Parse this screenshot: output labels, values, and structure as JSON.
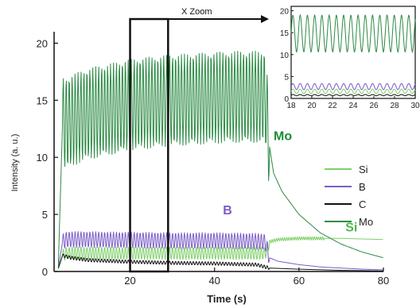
{
  "chart_data": [
    {
      "type": "line",
      "title": "",
      "xlabel": "Time (s)",
      "ylabel": "Intensity (a. u.)",
      "xlim": [
        2,
        80
      ],
      "ylim": [
        0,
        21
      ],
      "xticks": [
        20,
        40,
        60,
        80
      ],
      "yticks": [
        0,
        5,
        10,
        15,
        20
      ],
      "grid": false,
      "legend_position": "right",
      "zoom_window": {
        "label": "X Zoom",
        "x": [
          20,
          29
        ]
      },
      "annotations": [
        {
          "text": "Mo",
          "color": "#1e8a35",
          "x": 54,
          "y": 11.5
        },
        {
          "text": "B",
          "color": "#7b5cc8",
          "x": 42,
          "y": 5.0
        },
        {
          "text": "Si",
          "color": "#4ab84a",
          "x": 71,
          "y": 3.5
        }
      ],
      "series": [
        {
          "name": "Si",
          "color": "#7fd06a",
          "x": [
            3,
            4,
            5,
            10,
            20,
            30,
            40,
            50,
            52,
            53,
            55,
            60,
            65,
            70,
            75,
            80
          ],
          "y": [
            0.2,
            1.4,
            1.6,
            1.6,
            1.6,
            1.6,
            1.6,
            1.6,
            1.6,
            2.6,
            2.8,
            2.9,
            2.9,
            2.9,
            2.85,
            2.8
          ],
          "oscillation": {
            "x_start": 4,
            "x_end": 53,
            "period_s": 0.7,
            "amplitude": 0.55
          },
          "oscillation_2": {
            "x_start": 53,
            "x_end": 66,
            "period_s": 0.5,
            "amplitude": 0.15
          }
        },
        {
          "name": "B",
          "color": "#7b5cc8",
          "x": [
            3,
            4,
            5,
            10,
            20,
            30,
            40,
            50,
            52,
            53,
            55,
            60,
            65,
            70,
            75,
            80
          ],
          "y": [
            0.3,
            2.6,
            2.8,
            2.8,
            2.75,
            2.7,
            2.7,
            2.65,
            2.6,
            1.2,
            0.9,
            0.6,
            0.4,
            0.3,
            0.2,
            0.15
          ],
          "oscillation": {
            "x_start": 4,
            "x_end": 53,
            "period_s": 0.7,
            "amplitude": 0.7
          }
        },
        {
          "name": "C",
          "color": "#111111",
          "x": [
            3,
            4,
            6,
            10,
            20,
            30,
            40,
            50,
            53,
            60,
            70,
            80
          ],
          "y": [
            0.3,
            1.4,
            1.2,
            1.0,
            0.85,
            0.75,
            0.7,
            0.6,
            0.3,
            0.2,
            0.1,
            0.05
          ],
          "oscillation": {
            "x_start": 4,
            "x_end": 53,
            "period_s": 0.7,
            "amplitude": 0.15
          }
        },
        {
          "name": "Mo",
          "color": "#2d8b45",
          "x": [
            3,
            4,
            5,
            8,
            10,
            15,
            20,
            25,
            30,
            35,
            40,
            45,
            50,
            52,
            53,
            54,
            56,
            58,
            60,
            65,
            70,
            75,
            80
          ],
          "y": [
            0.5,
            13.0,
            13.0,
            13.5,
            13.8,
            14.2,
            14.6,
            14.8,
            15.0,
            15.1,
            15.2,
            15.3,
            15.3,
            15.3,
            11.0,
            8.6,
            7.0,
            6.0,
            5.0,
            3.4,
            2.4,
            1.7,
            1.2
          ],
          "oscillation": {
            "x_start": 4,
            "x_end": 53,
            "period_s": 0.7,
            "amplitude": 4.0
          }
        }
      ]
    },
    {
      "type": "line",
      "title": "",
      "xlim": [
        18,
        30
      ],
      "ylim": [
        0,
        21
      ],
      "xticks": [
        18,
        20,
        22,
        24,
        26,
        28,
        30
      ],
      "yticks": [
        0,
        5,
        10,
        15,
        20
      ],
      "series": [
        {
          "name": "Mo",
          "color": "#2d8b45",
          "baseline": 14.8,
          "amplitude": 4.2,
          "period_s": 0.7
        },
        {
          "name": "B",
          "color": "#7b5cc8",
          "baseline": 2.7,
          "amplitude": 0.7,
          "period_s": 0.7
        },
        {
          "name": "Si",
          "color": "#7fd06a",
          "baseline": 1.6,
          "amplitude": 0.5,
          "period_s": 0.7
        },
        {
          "name": "C",
          "color": "#111111",
          "baseline": 0.75,
          "amplitude": 0.15,
          "period_s": 0.7
        }
      ]
    }
  ]
}
